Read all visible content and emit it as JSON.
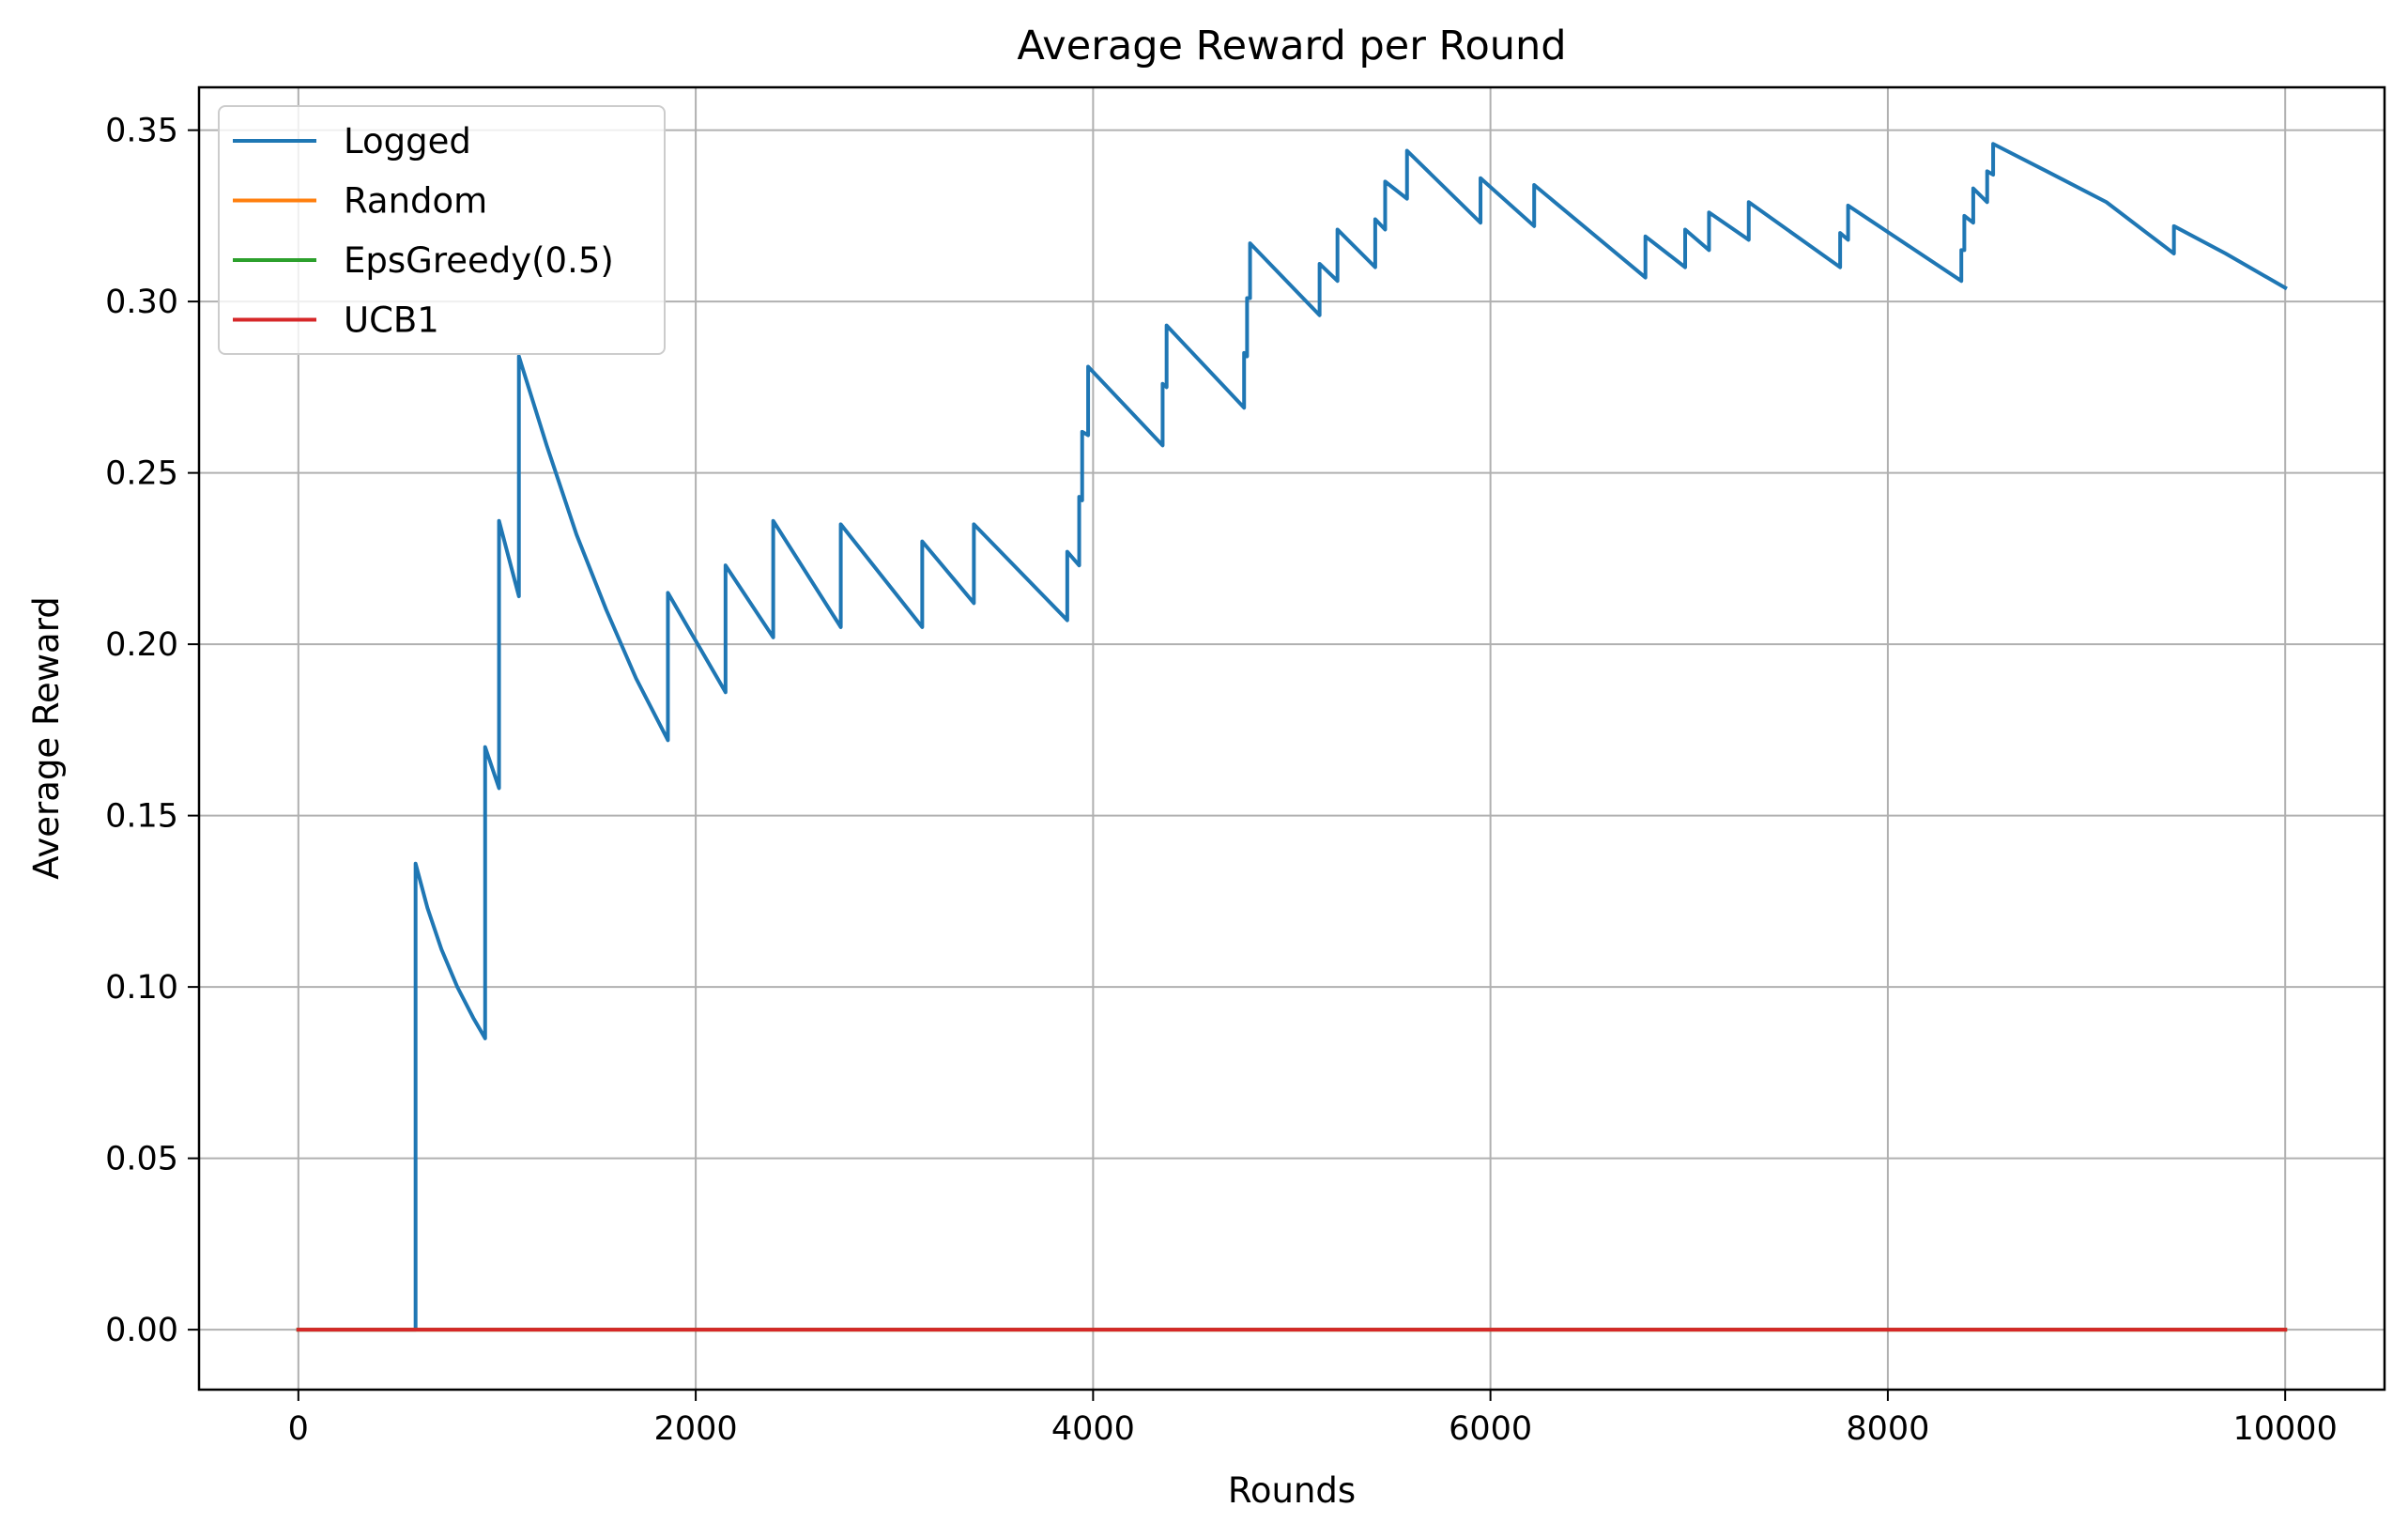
{
  "chart_data": {
    "type": "line",
    "title": "Average Reward per Round",
    "xlabel": "Rounds",
    "ylabel": "Average Reward",
    "xlim": [
      -500,
      10500
    ],
    "ylim": [
      -0.0175,
      0.3625
    ],
    "xticks": [
      0,
      2000,
      4000,
      6000,
      8000,
      10000
    ],
    "xtick_labels": [
      "0",
      "2000",
      "4000",
      "6000",
      "8000",
      "10000"
    ],
    "yticks": [
      0.0,
      0.05,
      0.1,
      0.15,
      0.2,
      0.25,
      0.3,
      0.35
    ],
    "ytick_labels": [
      "0.00",
      "0.05",
      "0.10",
      "0.15",
      "0.20",
      "0.25",
      "0.30",
      "0.35"
    ],
    "grid": true,
    "legend_position": "top-left",
    "series": [
      {
        "name": "Logged",
        "color": "#1f77b4",
        "points": [
          [
            0,
            0
          ],
          [
            590,
            0
          ],
          [
            590,
            0.136
          ],
          [
            650,
            0.123
          ],
          [
            720,
            0.111
          ],
          [
            800,
            0.1
          ],
          [
            880,
            0.091
          ],
          [
            940,
            0.085
          ],
          [
            940,
            0.17
          ],
          [
            1010,
            0.158
          ],
          [
            1010,
            0.236
          ],
          [
            1110,
            0.214
          ],
          [
            1110,
            0.284
          ],
          [
            1250,
            0.258
          ],
          [
            1400,
            0.232
          ],
          [
            1550,
            0.21
          ],
          [
            1700,
            0.19
          ],
          [
            1860,
            0.172
          ],
          [
            1860,
            0.215
          ],
          [
            2150,
            0.186
          ],
          [
            2150,
            0.223
          ],
          [
            2390,
            0.202
          ],
          [
            2390,
            0.236
          ],
          [
            2730,
            0.205
          ],
          [
            2730,
            0.235
          ],
          [
            3140,
            0.205
          ],
          [
            3140,
            0.23
          ],
          [
            3400,
            0.212
          ],
          [
            3400,
            0.235
          ],
          [
            3870,
            0.207
          ],
          [
            3870,
            0.227
          ],
          [
            3930,
            0.223
          ],
          [
            3930,
            0.243
          ],
          [
            3945,
            0.242
          ],
          [
            3945,
            0.262
          ],
          [
            3975,
            0.261
          ],
          [
            3975,
            0.281
          ],
          [
            4350,
            0.258
          ],
          [
            4350,
            0.276
          ],
          [
            4370,
            0.275
          ],
          [
            4370,
            0.293
          ],
          [
            4760,
            0.269
          ],
          [
            4760,
            0.285
          ],
          [
            4775,
            0.284
          ],
          [
            4775,
            0.301
          ],
          [
            4790,
            0.301
          ],
          [
            4790,
            0.317
          ],
          [
            5140,
            0.296
          ],
          [
            5140,
            0.311
          ],
          [
            5230,
            0.306
          ],
          [
            5230,
            0.321
          ],
          [
            5420,
            0.31
          ],
          [
            5420,
            0.324
          ],
          [
            5470,
            0.321
          ],
          [
            5470,
            0.335
          ],
          [
            5580,
            0.33
          ],
          [
            5580,
            0.344
          ],
          [
            5950,
            0.323
          ],
          [
            5950,
            0.336
          ],
          [
            6220,
            0.322
          ],
          [
            6220,
            0.334
          ],
          [
            6780,
            0.307
          ],
          [
            6780,
            0.319
          ],
          [
            6980,
            0.31
          ],
          [
            6980,
            0.321
          ],
          [
            7100,
            0.315
          ],
          [
            7100,
            0.326
          ],
          [
            7300,
            0.318
          ],
          [
            7300,
            0.329
          ],
          [
            7760,
            0.31
          ],
          [
            7760,
            0.32
          ],
          [
            7800,
            0.318
          ],
          [
            7800,
            0.328
          ],
          [
            8370,
            0.306
          ],
          [
            8370,
            0.315
          ],
          [
            8385,
            0.315
          ],
          [
            8385,
            0.325
          ],
          [
            8430,
            0.323
          ],
          [
            8430,
            0.333
          ],
          [
            8500,
            0.329
          ],
          [
            8500,
            0.338
          ],
          [
            8530,
            0.337
          ],
          [
            8530,
            0.346
          ],
          [
            8800,
            0.338
          ],
          [
            9100,
            0.329
          ],
          [
            9440,
            0.314
          ],
          [
            9440,
            0.322
          ],
          [
            9700,
            0.314
          ],
          [
            10000,
            0.304
          ]
        ]
      },
      {
        "name": "Random",
        "color": "#ff7f0e",
        "points": [
          [
            0,
            0
          ],
          [
            10000,
            0
          ]
        ]
      },
      {
        "name": "EpsGreedy(0.5)",
        "color": "#2ca02c",
        "points": [
          [
            0,
            0
          ],
          [
            10000,
            0
          ]
        ]
      },
      {
        "name": "UCB1",
        "color": "#d62728",
        "points": [
          [
            0,
            0
          ],
          [
            10000,
            0
          ]
        ]
      }
    ]
  }
}
